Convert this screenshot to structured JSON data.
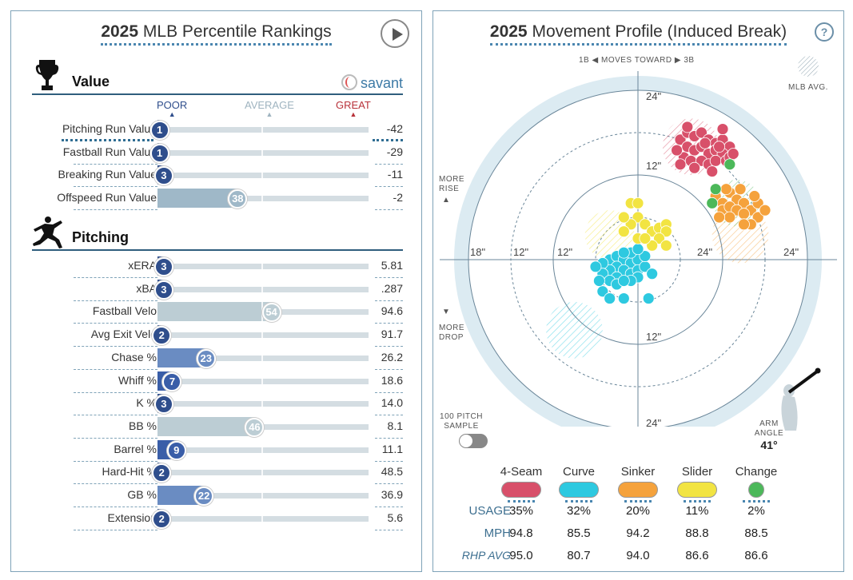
{
  "left": {
    "title_year": "2025",
    "title_text": "MLB Percentile Rankings",
    "value_section": "Value",
    "pitching_section": "Pitching",
    "savant_label": "savant",
    "scale": {
      "poor": "POOR",
      "average": "AVERAGE",
      "great": "GREAT"
    },
    "value_rows": [
      {
        "name": "Pitching Run Value",
        "pct": 1,
        "value": "-42",
        "color": "#2f4e8c"
      },
      {
        "name": "Fastball Run Value",
        "pct": 1,
        "value": "-29",
        "color": "#2f4e8c"
      },
      {
        "name": "Breaking Run Value",
        "pct": 3,
        "value": "-11",
        "color": "#2f4e8c"
      },
      {
        "name": "Offspeed Run Value",
        "pct": 38,
        "value": "-2",
        "color": "#9fb8c8"
      }
    ],
    "pitching_rows": [
      {
        "name": "xERA",
        "pct": 3,
        "value": "5.81",
        "color": "#2f4e8c"
      },
      {
        "name": "xBA",
        "pct": 3,
        "value": ".287",
        "color": "#2f4e8c"
      },
      {
        "name": "Fastball Velo",
        "pct": 54,
        "value": "94.6",
        "color": "#bccdd4"
      },
      {
        "name": "Avg Exit Velo",
        "pct": 2,
        "value": "91.7",
        "color": "#2f4e8c"
      },
      {
        "name": "Chase %",
        "pct": 23,
        "value": "26.2",
        "color": "#6a8cc2"
      },
      {
        "name": "Whiff %",
        "pct": 7,
        "value": "18.6",
        "color": "#3a5ea8"
      },
      {
        "name": "K %",
        "pct": 3,
        "value": "14.0",
        "color": "#2f4e8c"
      },
      {
        "name": "BB %",
        "pct": 46,
        "value": "8.1",
        "color": "#bccdd4"
      },
      {
        "name": "Barrel %",
        "pct": 9,
        "value": "11.1",
        "color": "#3a5ea8"
      },
      {
        "name": "Hard-Hit %",
        "pct": 2,
        "value": "48.5",
        "color": "#2f4e8c"
      },
      {
        "name": "GB %",
        "pct": 22,
        "value": "36.9",
        "color": "#6a8cc2"
      },
      {
        "name": "Extension",
        "pct": 2,
        "value": "5.6",
        "color": "#2f4e8c"
      }
    ]
  },
  "right": {
    "title_year": "2025",
    "title_text": "Movement Profile (Induced Break)",
    "help": "?",
    "direction": {
      "left": "1B",
      "middle": "MOVES TOWARD",
      "right": "3B"
    },
    "mlb_avg": "MLB AVG.",
    "more_rise": "MORE RISE",
    "more_drop": "MORE DROP",
    "axis_labels": [
      "24\"",
      "12\"",
      "24\"",
      "18\"",
      "12\"",
      "12\"",
      "24\"",
      "12\"",
      "24\""
    ],
    "sample_label": "100 PITCH SAMPLE",
    "arm_angle_label": "ARM ANGLE",
    "arm_angle": "41°",
    "pitches": [
      {
        "name": "4-Seam",
        "color": "#d8506a",
        "usage": "35%",
        "mph": "94.8",
        "rhp": "95.0"
      },
      {
        "name": "Curve",
        "color": "#2ec9e0",
        "usage": "32%",
        "mph": "85.5",
        "rhp": "80.7"
      },
      {
        "name": "Sinker",
        "color": "#f5a23c",
        "usage": "20%",
        "mph": "94.2",
        "rhp": "94.0"
      },
      {
        "name": "Slider",
        "color": "#f2e442",
        "usage": "11%",
        "mph": "88.8",
        "rhp": "86.6"
      },
      {
        "name": "Change",
        "color": "#4cb85a",
        "usage": "2%",
        "mph": "88.5",
        "rhp": "86.6"
      }
    ],
    "row_labels": {
      "usage": "USAGE",
      "mph": "MPH",
      "rhp": "RHP AVG"
    }
  }
}
